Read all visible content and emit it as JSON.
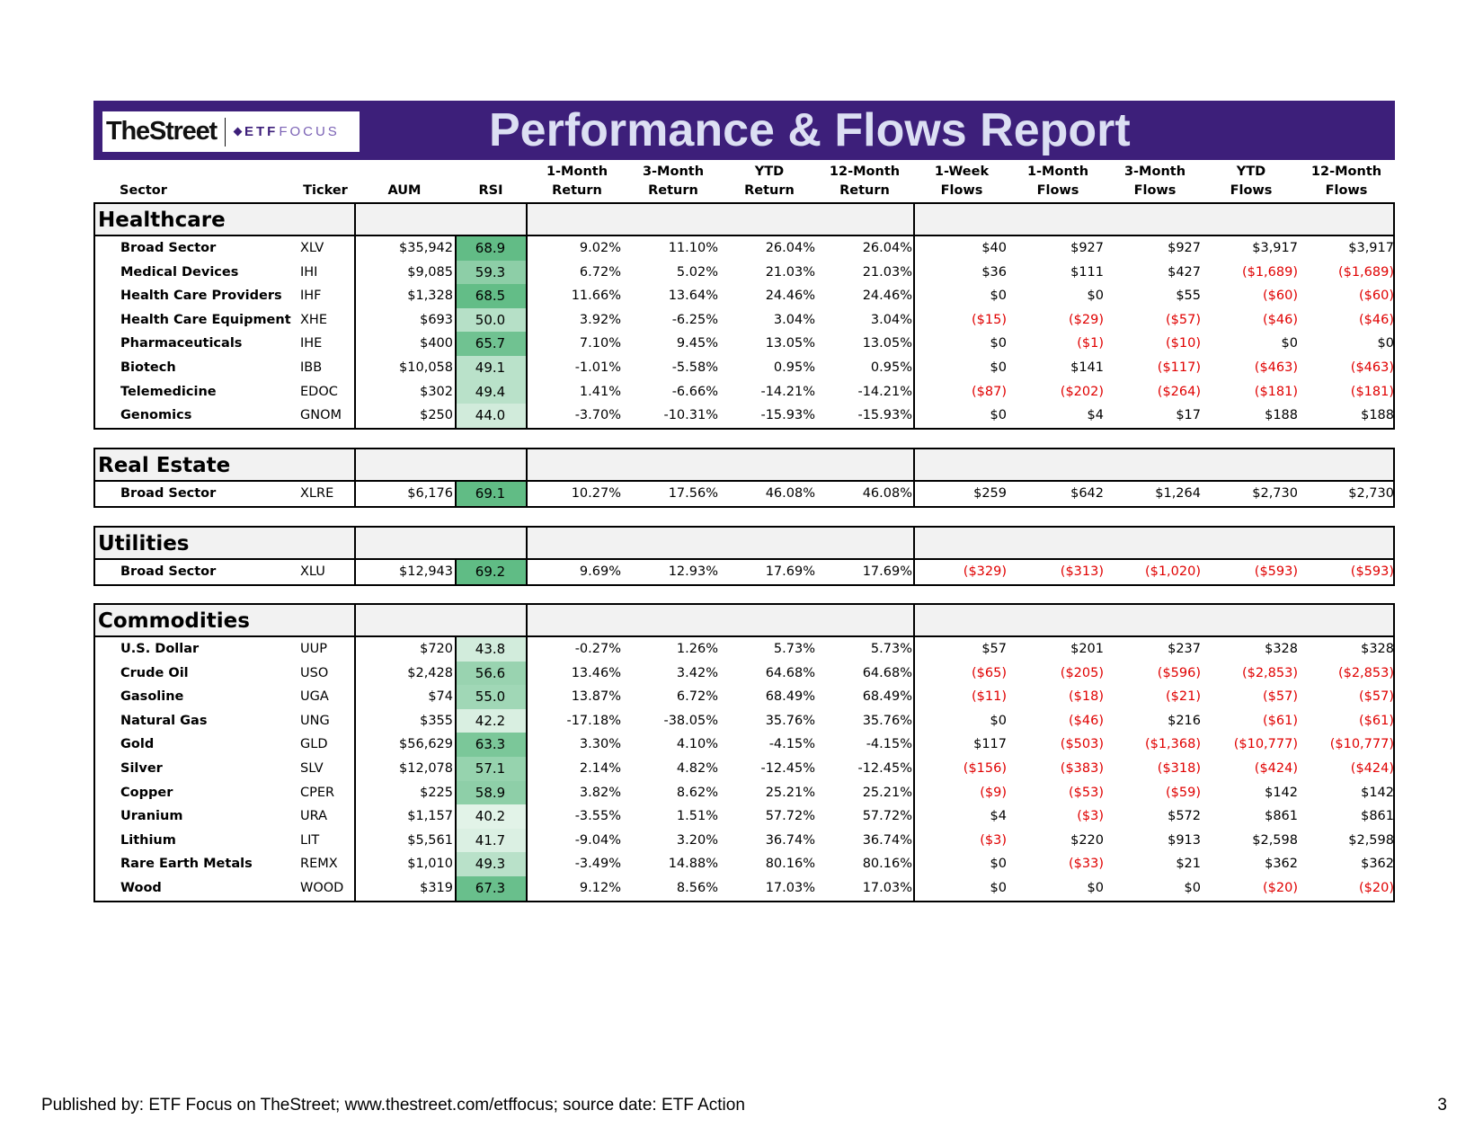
{
  "header": {
    "logo_primary": "TheStreet",
    "logo_etf": "ETF",
    "logo_focus": "FOCUS",
    "title": "Performance & Flows Report",
    "banner_color": "#3d1f7a"
  },
  "columns": [
    {
      "line1": "",
      "line2": "Sector"
    },
    {
      "line1": "",
      "line2": "Ticker"
    },
    {
      "line1": "",
      "line2": "AUM"
    },
    {
      "line1": "",
      "line2": "RSI"
    },
    {
      "line1": "1-Month",
      "line2": "Return"
    },
    {
      "line1": "3-Month",
      "line2": "Return"
    },
    {
      "line1": "YTD",
      "line2": "Return"
    },
    {
      "line1": "12-Month",
      "line2": "Return"
    },
    {
      "line1": "1-Week",
      "line2": "Flows"
    },
    {
      "line1": "1-Month",
      "line2": "Flows"
    },
    {
      "line1": "3-Month",
      "line2": "Flows"
    },
    {
      "line1": "YTD",
      "line2": "Flows"
    },
    {
      "line1": "12-Month",
      "line2": "Flows"
    }
  ],
  "colors": {
    "negative": "#e00000",
    "rsi_low": "#e3f3e9",
    "rsi_high": "#5fbb84"
  },
  "sections": [
    {
      "title": "Healthcare",
      "rows": [
        {
          "name": "Broad Sector",
          "ticker": "XLV",
          "aum": "$35,942",
          "rsi": "68.9",
          "r1m": "9.02%",
          "r3m": "11.10%",
          "rytd": "26.04%",
          "r12m": "26.04%",
          "f1w": "$40",
          "f1m": "$927",
          "f3m": "$927",
          "fytd": "$3,917",
          "f12m": "$3,917"
        },
        {
          "name": "Medical Devices",
          "ticker": "IHI",
          "aum": "$9,085",
          "rsi": "59.3",
          "r1m": "6.72%",
          "r3m": "5.02%",
          "rytd": "21.03%",
          "r12m": "21.03%",
          "f1w": "$36",
          "f1m": "$111",
          "f3m": "$427",
          "fytd": "($1,689)",
          "f12m": "($1,689)"
        },
        {
          "name": "Health Care Providers",
          "ticker": "IHF",
          "aum": "$1,328",
          "rsi": "68.5",
          "r1m": "11.66%",
          "r3m": "13.64%",
          "rytd": "24.46%",
          "r12m": "24.46%",
          "f1w": "$0",
          "f1m": "$0",
          "f3m": "$55",
          "fytd": "($60)",
          "f12m": "($60)"
        },
        {
          "name": "Health Care Equipment",
          "ticker": "XHE",
          "aum": "$693",
          "rsi": "50.0",
          "r1m": "3.92%",
          "r3m": "-6.25%",
          "rytd": "3.04%",
          "r12m": "3.04%",
          "f1w": "($15)",
          "f1m": "($29)",
          "f3m": "($57)",
          "fytd": "($46)",
          "f12m": "($46)"
        },
        {
          "name": "Pharmaceuticals",
          "ticker": "IHE",
          "aum": "$400",
          "rsi": "65.7",
          "r1m": "7.10%",
          "r3m": "9.45%",
          "rytd": "13.05%",
          "r12m": "13.05%",
          "f1w": "$0",
          "f1m": "($1)",
          "f3m": "($10)",
          "fytd": "$0",
          "f12m": "$0"
        },
        {
          "name": "Biotech",
          "ticker": "IBB",
          "aum": "$10,058",
          "rsi": "49.1",
          "r1m": "-1.01%",
          "r3m": "-5.58%",
          "rytd": "0.95%",
          "r12m": "0.95%",
          "f1w": "$0",
          "f1m": "$141",
          "f3m": "($117)",
          "fytd": "($463)",
          "f12m": "($463)"
        },
        {
          "name": "Telemedicine",
          "ticker": "EDOC",
          "aum": "$302",
          "rsi": "49.4",
          "r1m": "1.41%",
          "r3m": "-6.66%",
          "rytd": "-14.21%",
          "r12m": "-14.21%",
          "f1w": "($87)",
          "f1m": "($202)",
          "f3m": "($264)",
          "fytd": "($181)",
          "f12m": "($181)"
        },
        {
          "name": "Genomics",
          "ticker": "GNOM",
          "aum": "$250",
          "rsi": "44.0",
          "r1m": "-3.70%",
          "r3m": "-10.31%",
          "rytd": "-15.93%",
          "r12m": "-15.93%",
          "f1w": "$0",
          "f1m": "$4",
          "f3m": "$17",
          "fytd": "$188",
          "f12m": "$188"
        }
      ]
    },
    {
      "title": "Real Estate",
      "rows": [
        {
          "name": "Broad Sector",
          "ticker": "XLRE",
          "aum": "$6,176",
          "rsi": "69.1",
          "r1m": "10.27%",
          "r3m": "17.56%",
          "rytd": "46.08%",
          "r12m": "46.08%",
          "f1w": "$259",
          "f1m": "$642",
          "f3m": "$1,264",
          "fytd": "$2,730",
          "f12m": "$2,730"
        }
      ]
    },
    {
      "title": "Utilities",
      "rows": [
        {
          "name": "Broad Sector",
          "ticker": "XLU",
          "aum": "$12,943",
          "rsi": "69.2",
          "r1m": "9.69%",
          "r3m": "12.93%",
          "rytd": "17.69%",
          "r12m": "17.69%",
          "f1w": "($329)",
          "f1m": "($313)",
          "f3m": "($1,020)",
          "fytd": "($593)",
          "f12m": "($593)"
        }
      ]
    },
    {
      "title": "Commodities",
      "rows": [
        {
          "name": "U.S. Dollar",
          "ticker": "UUP",
          "aum": "$720",
          "rsi": "43.8",
          "r1m": "-0.27%",
          "r3m": "1.26%",
          "rytd": "5.73%",
          "r12m": "5.73%",
          "f1w": "$57",
          "f1m": "$201",
          "f3m": "$237",
          "fytd": "$328",
          "f12m": "$328"
        },
        {
          "name": "Crude Oil",
          "ticker": "USO",
          "aum": "$2,428",
          "rsi": "56.6",
          "r1m": "13.46%",
          "r3m": "3.42%",
          "rytd": "64.68%",
          "r12m": "64.68%",
          "f1w": "($65)",
          "f1m": "($205)",
          "f3m": "($596)",
          "fytd": "($2,853)",
          "f12m": "($2,853)"
        },
        {
          "name": "Gasoline",
          "ticker": "UGA",
          "aum": "$74",
          "rsi": "55.0",
          "r1m": "13.87%",
          "r3m": "6.72%",
          "rytd": "68.49%",
          "r12m": "68.49%",
          "f1w": "($11)",
          "f1m": "($18)",
          "f3m": "($21)",
          "fytd": "($57)",
          "f12m": "($57)"
        },
        {
          "name": "Natural Gas",
          "ticker": "UNG",
          "aum": "$355",
          "rsi": "42.2",
          "r1m": "-17.18%",
          "r3m": "-38.05%",
          "rytd": "35.76%",
          "r12m": "35.76%",
          "f1w": "$0",
          "f1m": "($46)",
          "f3m": "$216",
          "fytd": "($61)",
          "f12m": "($61)"
        },
        {
          "name": "Gold",
          "ticker": "GLD",
          "aum": "$56,629",
          "rsi": "63.3",
          "r1m": "3.30%",
          "r3m": "4.10%",
          "rytd": "-4.15%",
          "r12m": "-4.15%",
          "f1w": "$117",
          "f1m": "($503)",
          "f3m": "($1,368)",
          "fytd": "($10,777)",
          "f12m": "($10,777)"
        },
        {
          "name": "Silver",
          "ticker": "SLV",
          "aum": "$12,078",
          "rsi": "57.1",
          "r1m": "2.14%",
          "r3m": "4.82%",
          "rytd": "-12.45%",
          "r12m": "-12.45%",
          "f1w": "($156)",
          "f1m": "($383)",
          "f3m": "($318)",
          "fytd": "($424)",
          "f12m": "($424)"
        },
        {
          "name": "Copper",
          "ticker": "CPER",
          "aum": "$225",
          "rsi": "58.9",
          "r1m": "3.82%",
          "r3m": "8.62%",
          "rytd": "25.21%",
          "r12m": "25.21%",
          "f1w": "($9)",
          "f1m": "($53)",
          "f3m": "($59)",
          "fytd": "$142",
          "f12m": "$142"
        },
        {
          "name": "Uranium",
          "ticker": "URA",
          "aum": "$1,157",
          "rsi": "40.2",
          "r1m": "-3.55%",
          "r3m": "1.51%",
          "rytd": "57.72%",
          "r12m": "57.72%",
          "f1w": "$4",
          "f1m": "($3)",
          "f3m": "$572",
          "fytd": "$861",
          "f12m": "$861"
        },
        {
          "name": "Lithium",
          "ticker": "LIT",
          "aum": "$5,561",
          "rsi": "41.7",
          "r1m": "-9.04%",
          "r3m": "3.20%",
          "rytd": "36.74%",
          "r12m": "36.74%",
          "f1w": "($3)",
          "f1m": "$220",
          "f3m": "$913",
          "fytd": "$2,598",
          "f12m": "$2,598"
        },
        {
          "name": "Rare Earth Metals",
          "ticker": "REMX",
          "aum": "$1,010",
          "rsi": "49.3",
          "r1m": "-3.49%",
          "r3m": "14.88%",
          "rytd": "80.16%",
          "r12m": "80.16%",
          "f1w": "$0",
          "f1m": "($33)",
          "f3m": "$21",
          "fytd": "$362",
          "f12m": "$362"
        },
        {
          "name": "Wood",
          "ticker": "WOOD",
          "aum": "$319",
          "rsi": "67.3",
          "r1m": "9.12%",
          "r3m": "8.56%",
          "rytd": "17.03%",
          "r12m": "17.03%",
          "f1w": "$0",
          "f1m": "$0",
          "f3m": "$0",
          "fytd": "($20)",
          "f12m": "($20)"
        }
      ]
    }
  ],
  "footer": {
    "publisher": "Published by: ETF Focus on TheStreet; www.thestreet.com/etffocus; source date: ETF Action",
    "page": "3"
  }
}
